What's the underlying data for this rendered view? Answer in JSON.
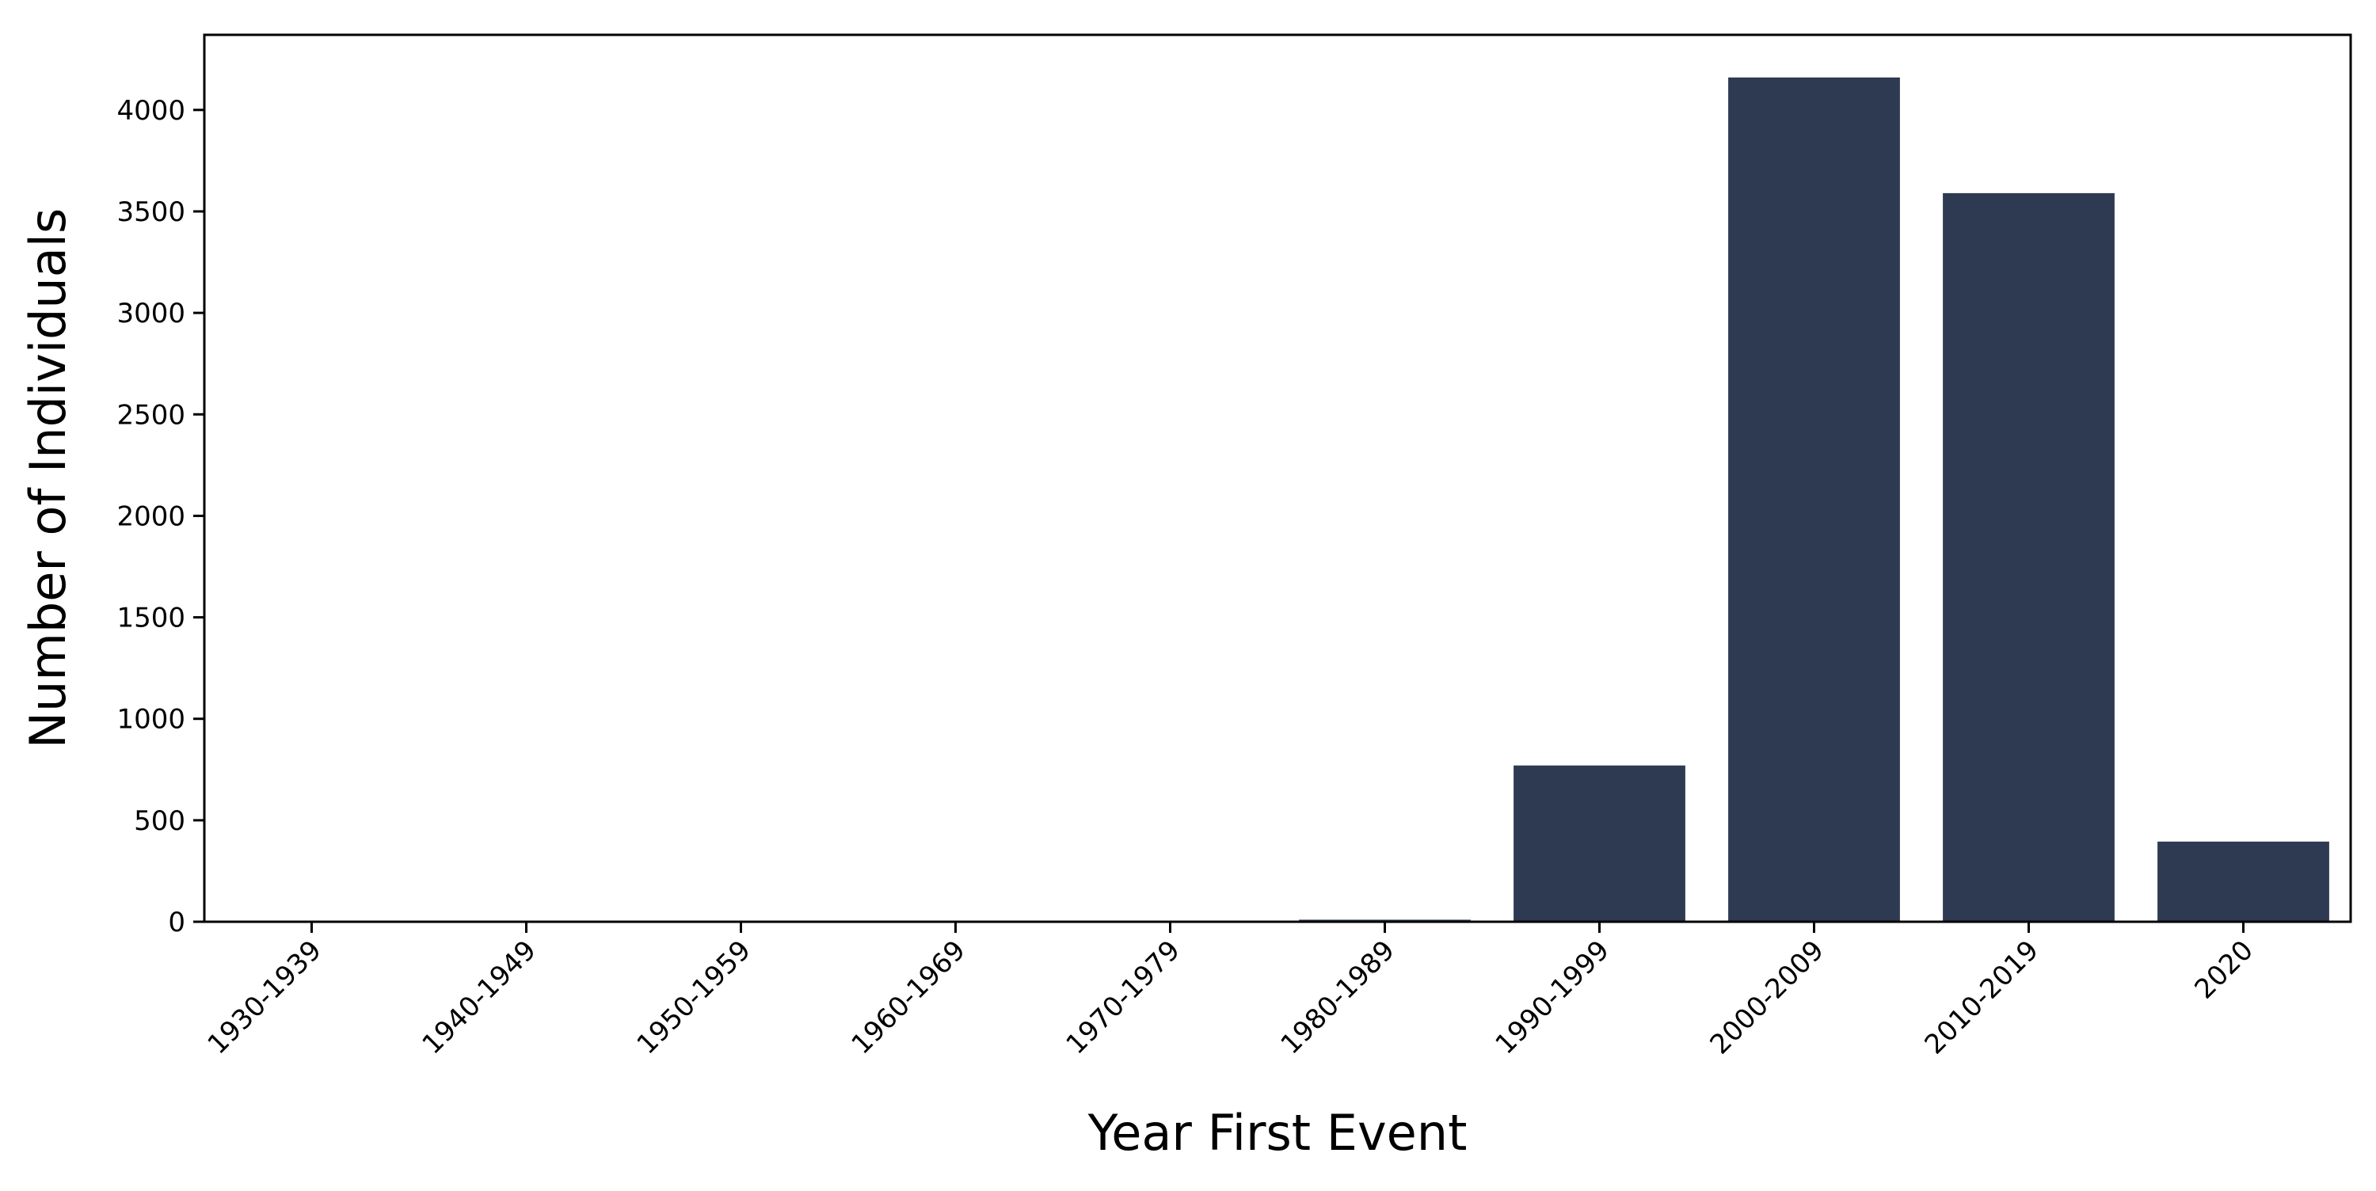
{
  "chart_data": {
    "type": "bar",
    "title": "",
    "xlabel": "Year First Event",
    "ylabel": "Number of Individuals",
    "categories": [
      "1930-1939",
      "1940-1949",
      "1950-1959",
      "1960-1969",
      "1970-1979",
      "1980-1989",
      "1990-1999",
      "2000-2009",
      "2010-2019",
      "2020"
    ],
    "values": [
      1,
      1,
      1,
      1,
      2,
      10,
      770,
      4160,
      3590,
      395
    ],
    "ylim": [
      0,
      4370
    ],
    "yticks": [
      0,
      500,
      1000,
      1500,
      2000,
      2500,
      3000,
      3500,
      4000
    ],
    "ytick_labels": [
      "0",
      "500",
      "1000",
      "1500",
      "2000",
      "2500",
      "3000",
      "3500",
      "4000"
    ],
    "bar_color": "#2e3a51",
    "grid": false,
    "legend": "none"
  }
}
